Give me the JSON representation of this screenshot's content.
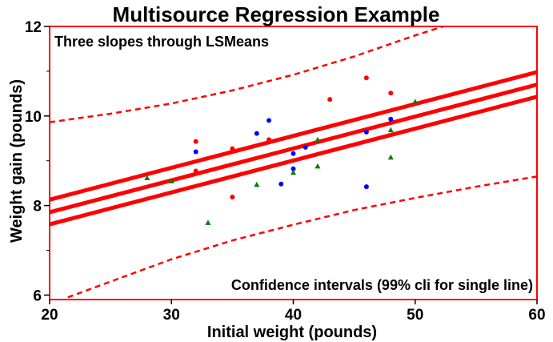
{
  "chart_data": {
    "type": "scatter",
    "title": "Multisource Regression Example",
    "xlabel": "Initial weight (pounds)",
    "ylabel": "Weight gain (pounds)",
    "xlim": [
      20,
      60
    ],
    "ylim": [
      5.9,
      12
    ],
    "xticks": [
      20,
      30,
      40,
      50,
      60
    ],
    "yticks": [
      6,
      8,
      10,
      12
    ],
    "yminor": [
      7,
      9,
      11
    ],
    "grid": false,
    "annotations": [
      {
        "text": "Three slopes through LSMeans",
        "position": "top-left"
      },
      {
        "text": "Confidence intervals (99% cli for single line)",
        "position": "bottom-right"
      }
    ],
    "colors": {
      "frame": "#ff0000",
      "lines": "#ff0000",
      "red_points": "#ff0000",
      "blue_points": "#0000ff",
      "green_points": "#008000"
    },
    "regression_lines": [
      {
        "x": [
          20,
          60
        ],
        "y": [
          8.13,
          10.98
        ]
      },
      {
        "x": [
          20,
          60
        ],
        "y": [
          7.85,
          10.7
        ]
      },
      {
        "x": [
          20,
          60
        ],
        "y": [
          7.58,
          10.43
        ]
      }
    ],
    "confidence_bands": [
      {
        "x": [
          20,
          25,
          30,
          35,
          40,
          45,
          50,
          52.3
        ],
        "y": [
          9.86,
          10.05,
          10.28,
          10.57,
          10.92,
          11.33,
          11.8,
          12.0
        ]
      },
      {
        "x": [
          21.5,
          25,
          30,
          35,
          40,
          45,
          50,
          55,
          60
        ],
        "y": [
          5.95,
          6.3,
          6.8,
          7.22,
          7.57,
          7.9,
          8.17,
          8.42,
          8.65
        ]
      }
    ],
    "series": [
      {
        "color": "red",
        "marker": "circle",
        "x": [
          32,
          32,
          35,
          35,
          38,
          43,
          46,
          48
        ],
        "y": [
          9.43,
          8.77,
          9.27,
          8.19,
          9.47,
          10.37,
          10.85,
          10.51
        ]
      },
      {
        "color": "blue",
        "marker": "circle",
        "x": [
          32,
          37,
          38,
          39,
          40,
          40,
          41,
          46,
          46,
          48
        ],
        "y": [
          9.2,
          9.61,
          9.9,
          8.48,
          9.16,
          8.82,
          9.3,
          9.64,
          8.42,
          9.93
        ]
      },
      {
        "color": "green",
        "marker": "triangle",
        "x": [
          28,
          30,
          33,
          37,
          40,
          42,
          42,
          48,
          48,
          50
        ],
        "y": [
          8.62,
          8.55,
          7.62,
          8.47,
          8.74,
          9.47,
          8.88,
          9.69,
          9.08,
          10.32
        ]
      }
    ]
  }
}
